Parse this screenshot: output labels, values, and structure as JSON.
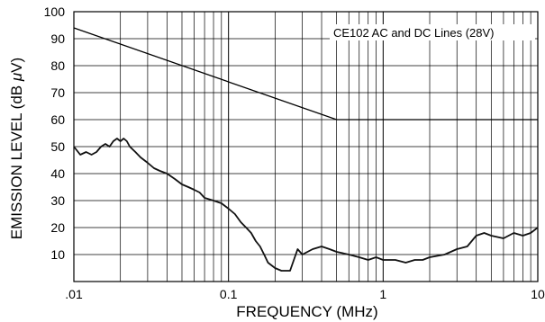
{
  "chart_data": {
    "type": "line",
    "xlabel": "FREQUENCY (MHz)",
    "ylabel_main": "EMISSION LEVEL (dB ",
    "ylabel_mu": "μ",
    "ylabel_end": "V)",
    "x_scale": "log",
    "xlim": [
      0.01,
      10
    ],
    "ylim": [
      0,
      100
    ],
    "grid": true,
    "x_tick_labels": [
      {
        "value": 0.01,
        "label": ".01"
      },
      {
        "value": 0.1,
        "label": "0.1"
      },
      {
        "value": 1,
        "label": "1"
      },
      {
        "value": 10,
        "label": "10"
      }
    ],
    "y_tick_labels": [
      {
        "value": 10,
        "label": "10"
      },
      {
        "value": 20,
        "label": "20"
      },
      {
        "value": 30,
        "label": "30"
      },
      {
        "value": 40,
        "label": "40"
      },
      {
        "value": 50,
        "label": "50"
      },
      {
        "value": 60,
        "label": "60"
      },
      {
        "value": 70,
        "label": "70"
      },
      {
        "value": 80,
        "label": "80"
      },
      {
        "value": 90,
        "label": "90"
      },
      {
        "value": 100,
        "label": "100"
      }
    ],
    "annotation": "CE102 AC and DC Lines (28V)",
    "limit_line": {
      "x": [
        0.01,
        0.5,
        10
      ],
      "y": [
        94,
        60,
        60
      ]
    },
    "series": [
      {
        "color": "#111111",
        "x": [
          0.01,
          0.011,
          0.012,
          0.013,
          0.014,
          0.015,
          0.016,
          0.017,
          0.018,
          0.019,
          0.02,
          0.021,
          0.022,
          0.023,
          0.025,
          0.027,
          0.03,
          0.033,
          0.036,
          0.04,
          0.045,
          0.05,
          0.055,
          0.06,
          0.065,
          0.07,
          0.08,
          0.09,
          0.1,
          0.11,
          0.12,
          0.13,
          0.14,
          0.15,
          0.16,
          0.17,
          0.18,
          0.2,
          0.22,
          0.25,
          0.28,
          0.3,
          0.35,
          0.4,
          0.45,
          0.5,
          0.6,
          0.7,
          0.8,
          0.9,
          1.0,
          1.2,
          1.4,
          1.6,
          1.8,
          2.0,
          2.5,
          3.0,
          3.5,
          4.0,
          4.5,
          5.0,
          6.0,
          7.0,
          8.0,
          9.0,
          10
        ],
        "y": [
          50,
          47,
          48,
          47,
          48,
          50,
          51,
          50,
          52,
          53,
          52,
          53,
          52,
          50,
          48,
          46,
          44,
          42,
          41,
          40,
          38,
          36,
          35,
          34,
          33,
          31,
          30,
          29,
          27,
          25,
          22,
          20,
          18,
          15,
          13,
          10,
          7,
          5,
          4,
          4,
          12,
          10,
          12,
          13,
          12,
          11,
          10,
          9,
          8,
          9,
          8,
          8,
          7,
          8,
          8,
          9,
          10,
          12,
          13,
          17,
          18,
          17,
          16,
          18,
          17,
          18,
          20
        ]
      }
    ]
  }
}
